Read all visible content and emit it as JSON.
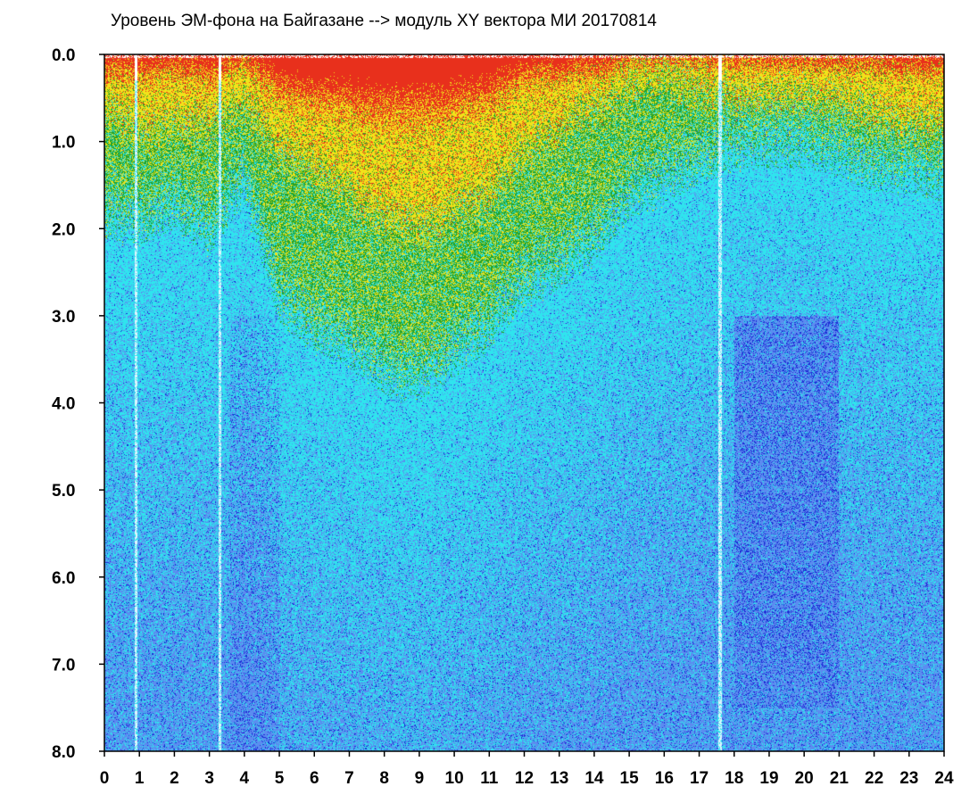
{
  "chart_data": {
    "type": "heatmap",
    "title": "Уровень ЭМ-фона на Байгазане   -->  модуль XY вектора МИ  20170814",
    "xlabel": "",
    "ylabel": "",
    "xlim": [
      0,
      24
    ],
    "ylim": [
      0.0,
      8.0
    ],
    "y_inverted": true,
    "grid": false,
    "x_ticks": [
      "0",
      "1",
      "2",
      "3",
      "4",
      "5",
      "6",
      "7",
      "8",
      "9",
      "10",
      "11",
      "12",
      "13",
      "14",
      "15",
      "16",
      "17",
      "18",
      "19",
      "20",
      "21",
      "22",
      "23",
      "24"
    ],
    "y_ticks": [
      "0.0",
      "1.0",
      "2.0",
      "3.0",
      "4.0",
      "5.0",
      "6.0",
      "7.0",
      "8.0"
    ],
    "colorscale": [
      {
        "level": "highest",
        "color": "#e8301c"
      },
      {
        "level": "high",
        "color": "#f2e21a"
      },
      {
        "level": "medium-high",
        "color": "#23a32a"
      },
      {
        "level": "medium",
        "color": "#2fe4ee"
      },
      {
        "level": "low",
        "color": "#5b8cf0"
      },
      {
        "level": "lowest",
        "color": "#1b2cd6"
      }
    ],
    "activity_profile": {
      "hours": [
        0,
        1,
        2,
        3,
        4,
        5,
        6,
        7,
        8,
        9,
        10,
        11,
        12,
        13,
        14,
        15,
        16,
        17,
        18,
        19,
        20,
        21,
        22,
        23,
        24
      ],
      "green_boundary_depth": [
        1.7,
        1.8,
        1.6,
        1.9,
        1.3,
        2.7,
        3.0,
        3.2,
        3.5,
        3.6,
        3.3,
        3.0,
        2.5,
        2.3,
        2.0,
        1.5,
        1.3,
        1.1,
        0.9,
        0.9,
        0.9,
        1.0,
        1.2,
        1.2,
        1.3
      ],
      "yellow_boundary_depth": [
        0.6,
        0.9,
        0.8,
        0.8,
        0.6,
        1.1,
        1.3,
        1.6,
        1.9,
        2.0,
        1.8,
        1.6,
        1.1,
        0.9,
        0.6,
        0.4,
        0.3,
        0.4,
        0.5,
        0.5,
        0.5,
        0.5,
        0.7,
        0.8,
        0.8
      ],
      "red_fringe_depth": [
        0.2,
        0.25,
        0.2,
        0.3,
        0.1,
        0.5,
        0.6,
        0.7,
        0.8,
        0.8,
        0.7,
        0.6,
        0.3,
        0.3,
        0.2,
        0.05,
        0.03,
        0.05,
        0.1,
        0.1,
        0.1,
        0.1,
        0.15,
        0.2,
        0.2
      ],
      "dark_blue_region": {
        "x": [
          18,
          21
        ],
        "y": [
          3.0,
          7.5
        ]
      },
      "dropout_lines_hours": [
        0.9,
        3.3,
        17.6
      ]
    }
  }
}
